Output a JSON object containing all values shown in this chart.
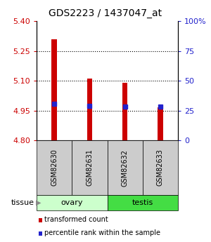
{
  "title": "GDS2223 / 1437047_at",
  "samples": [
    "GSM82630",
    "GSM82631",
    "GSM82632",
    "GSM82633"
  ],
  "bar_values": [
    5.31,
    5.11,
    5.09,
    4.965
  ],
  "bar_base": 4.8,
  "percentile_values": [
    4.984,
    4.974,
    4.97,
    4.969
  ],
  "ylim": [
    4.8,
    5.4
  ],
  "yticks_left": [
    4.8,
    4.95,
    5.1,
    5.25,
    5.4
  ],
  "yticks_right_labels": [
    "0",
    "25",
    "50",
    "75",
    "100%"
  ],
  "bar_color": "#cc0000",
  "percentile_color": "#2222cc",
  "tissue_groups": [
    {
      "label": "ovary",
      "cols": [
        0,
        1
      ],
      "color": "#ccffcc"
    },
    {
      "label": "testis",
      "cols": [
        2,
        3
      ],
      "color": "#44dd44"
    }
  ],
  "legend_items": [
    {
      "label": "transformed count",
      "color": "#cc0000"
    },
    {
      "label": "percentile rank within the sample",
      "color": "#2222cc"
    }
  ],
  "tissue_label": "tissue",
  "bar_width": 0.15,
  "sample_box_color": "#cccccc",
  "plot_bg": "#ffffff",
  "border_color": "#000000"
}
